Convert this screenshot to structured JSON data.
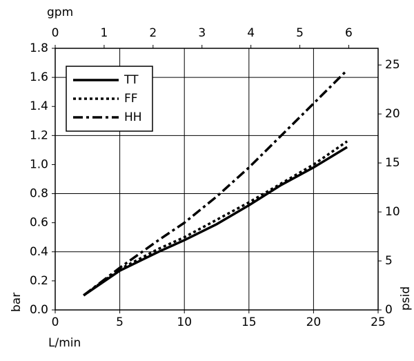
{
  "chart_data": {
    "type": "line",
    "x_label": "L/min",
    "x2_label": "gpm",
    "y_label": "bar",
    "y2_label": "psid",
    "x": [
      2.2,
      5,
      8,
      10,
      12.5,
      15,
      17.5,
      20,
      22.6
    ],
    "series": [
      {
        "name": "TT",
        "color": "#000000",
        "style": "solid",
        "values": [
          0.1,
          0.27,
          0.4,
          0.48,
          0.59,
          0.72,
          0.86,
          0.98,
          1.12
        ]
      },
      {
        "name": "FF",
        "color": "#000000",
        "style": "dotted",
        "values": [
          0.1,
          0.28,
          0.42,
          0.5,
          0.62,
          0.74,
          0.87,
          1.0,
          1.16
        ]
      },
      {
        "name": "HH",
        "color": "#000000",
        "style": "dashdot",
        "values": [
          0.1,
          0.29,
          0.48,
          0.6,
          0.78,
          0.98,
          1.2,
          1.42,
          1.65
        ]
      }
    ],
    "xlim": [
      0,
      25
    ],
    "xticks": [
      0,
      5,
      10,
      15,
      20,
      25
    ],
    "x2lim": [
      0,
      6.6
    ],
    "x2ticks": [
      0,
      1,
      2,
      3,
      4,
      5,
      6
    ],
    "ylim": [
      0,
      1.8
    ],
    "yticks": [
      {
        "value": 0,
        "label": "0.0"
      },
      0.2,
      0.4,
      0.6,
      0.8,
      {
        "value": 1,
        "label": "1.0"
      },
      1.2,
      1.4,
      1.6,
      1.8
    ],
    "y2lim": [
      0,
      26.7
    ],
    "y2ticks": [
      0,
      5,
      10,
      15,
      20,
      25
    ],
    "grid": true,
    "legend": "upper left"
  }
}
